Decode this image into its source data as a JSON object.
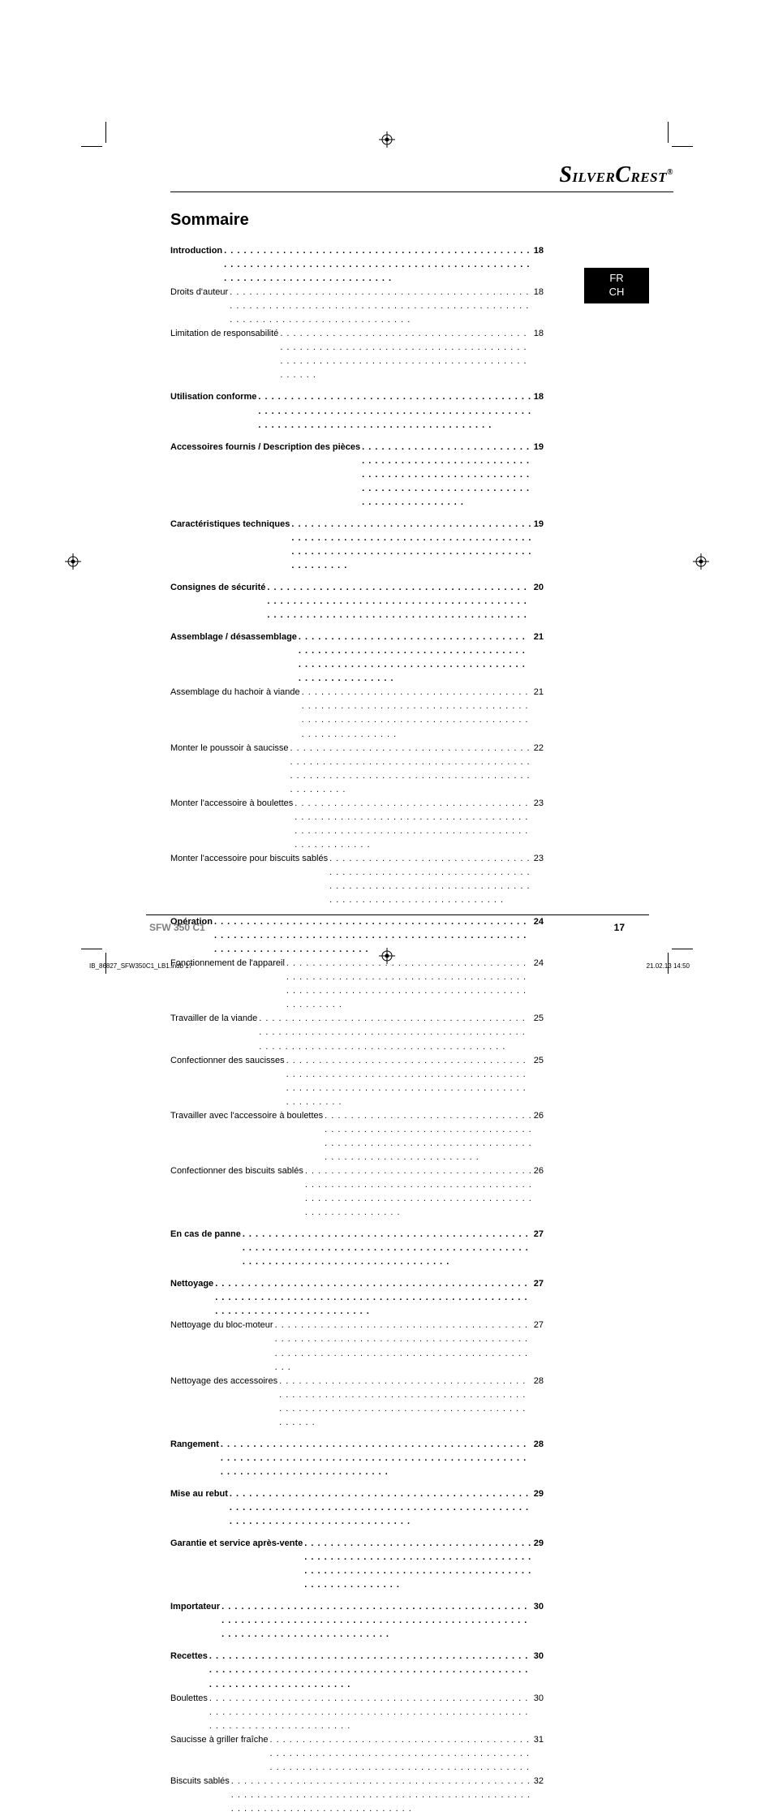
{
  "brand": {
    "name": "SilverCrest",
    "symbol": "®"
  },
  "lang_tab": {
    "line1": "FR",
    "line2": "CH"
  },
  "title": "Sommaire",
  "toc": [
    {
      "label": "Introduction",
      "page": "18",
      "sub": [
        {
          "label": "Droits d'auteur",
          "page": "18"
        },
        {
          "label": "Limitation de responsabilité",
          "page": "18"
        }
      ]
    },
    {
      "label": "Utilisation conforme",
      "page": "18",
      "sub": []
    },
    {
      "label": "Accessoires fournis / Description des pièces",
      "page": "19",
      "sub": []
    },
    {
      "label": "Caractéristiques techniques",
      "page": "19",
      "sub": []
    },
    {
      "label": "Consignes de sécurité",
      "page": "20",
      "sub": []
    },
    {
      "label": "Assemblage / désassemblage",
      "page": "21",
      "sub": [
        {
          "label": "Assemblage du hachoir à viande",
          "page": "21"
        },
        {
          "label": "Monter le poussoir à saucisse",
          "page": "22"
        },
        {
          "label": "Monter l'accessoire à boulettes",
          "page": "23"
        },
        {
          "label": "Monter l'accessoire pour biscuits sablés",
          "page": "23"
        }
      ]
    },
    {
      "label": "Opération",
      "page": "24",
      "sub": [
        {
          "label": "Fonctionnement de l'appareil",
          "page": "24"
        },
        {
          "label": "Travailler de la viande",
          "page": "25"
        },
        {
          "label": "Confectionner des saucisses",
          "page": "25"
        },
        {
          "label": "Travailler avec l'accessoire à boulettes",
          "page": "26"
        },
        {
          "label": "Confectionner des biscuits sablés",
          "page": "26"
        }
      ]
    },
    {
      "label": "En cas de panne",
      "page": "27",
      "sub": []
    },
    {
      "label": "Nettoyage",
      "page": "27",
      "sub": [
        {
          "label": "Nettoyage du bloc-moteur",
          "page": "27"
        },
        {
          "label": "Nettoyage des accessoires",
          "page": "28"
        }
      ]
    },
    {
      "label": "Rangement",
      "page": "28",
      "sub": []
    },
    {
      "label": "Mise au rebut",
      "page": "29",
      "sub": []
    },
    {
      "label": "Garantie et service après-vente",
      "page": "29",
      "sub": []
    },
    {
      "label": "Importateur",
      "page": "30",
      "sub": []
    },
    {
      "label": "Recettes",
      "page": "30",
      "sub": [
        {
          "label": "Boulettes",
          "page": "30"
        },
        {
          "label": "Saucisse à griller fraîche",
          "page": "31"
        },
        {
          "label": "Biscuits sablés",
          "page": "32"
        }
      ]
    }
  ],
  "footer": {
    "model": "SFW 350 C1",
    "page": "17"
  },
  "imprint": {
    "left": "IB_86827_SFW350C1_LB1.indb   17",
    "right": "21.02.13   14:50"
  },
  "colors": {
    "text": "#000000",
    "muted": "#808080",
    "tab_bg": "#000000",
    "tab_fg": "#ffffff",
    "page_bg": "#ffffff"
  },
  "fontsizes": {
    "title": 20,
    "brand": 24,
    "toc": 11,
    "footer": 12,
    "imprint": 8,
    "langtab": 13
  }
}
